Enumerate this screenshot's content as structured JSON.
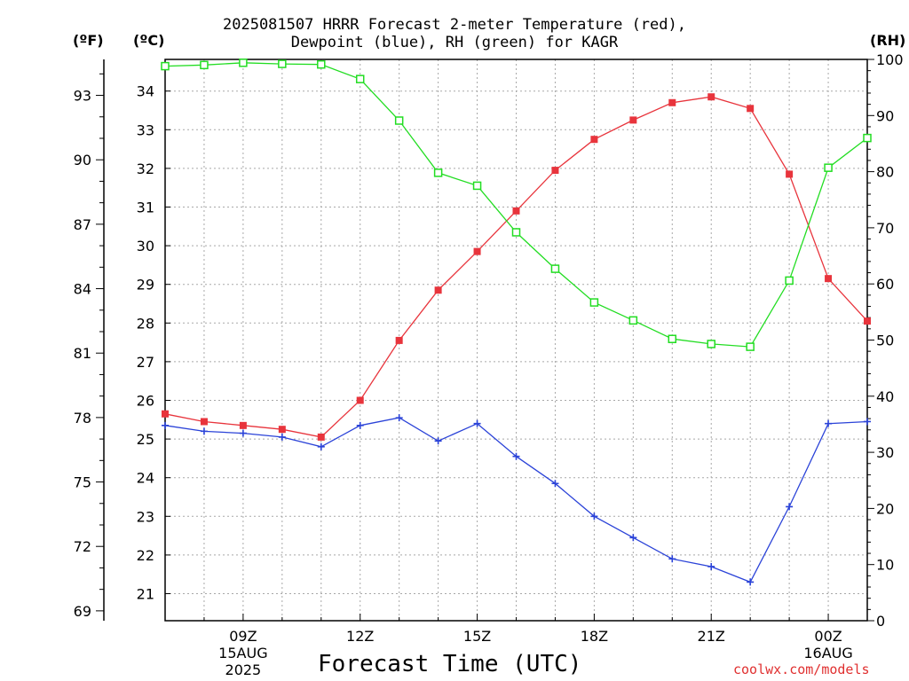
{
  "chart_data": {
    "type": "line",
    "title_line1": "2025081507 HRRR Forecast 2-meter Temperature (red),",
    "title_line2": "Dewpoint (blue), RH (green) for KAGR",
    "xlabel": "Forecast Time (UTC)",
    "credit": "coolwx.com/models",
    "unit_f": "(ºF)",
    "unit_c": "(ºC)",
    "unit_rh": "(RH)",
    "x_hours": [
      7,
      8,
      9,
      10,
      11,
      12,
      13,
      14,
      15,
      16,
      17,
      18,
      19,
      20,
      21,
      22,
      23,
      24,
      25
    ],
    "x_ticks": [
      {
        "hour": 9,
        "lines": [
          "09Z",
          "15AUG",
          "2025"
        ]
      },
      {
        "hour": 12,
        "lines": [
          "12Z"
        ]
      },
      {
        "hour": 15,
        "lines": [
          "15Z"
        ]
      },
      {
        "hour": 18,
        "lines": [
          "18Z"
        ]
      },
      {
        "hour": 21,
        "lines": [
          "21Z"
        ]
      },
      {
        "hour": 24,
        "lines": [
          "00Z",
          "16AUG"
        ]
      }
    ],
    "x_range": [
      7,
      25
    ],
    "celsius_ticks": [
      21,
      22,
      23,
      24,
      25,
      26,
      27,
      28,
      29,
      30,
      31,
      32,
      33,
      34
    ],
    "fahrenheit_ticks": [
      69,
      72,
      75,
      78,
      81,
      84,
      87,
      90,
      93
    ],
    "rh_ticks": [
      0,
      10,
      20,
      30,
      40,
      50,
      60,
      70,
      80,
      90,
      100
    ],
    "rh_range": [
      0,
      100
    ],
    "grid": true,
    "series": [
      {
        "key": "temp",
        "color": "#e8343c",
        "marker": "filled-square",
        "values": [
          25.65,
          25.45,
          25.35,
          25.25,
          25.05,
          26.0,
          27.55,
          28.85,
          29.85,
          30.9,
          31.95,
          32.75,
          33.25,
          33.7,
          33.85,
          33.55,
          31.85,
          29.15,
          28.05
        ]
      },
      {
        "key": "dewpoint",
        "color": "#2b43d8",
        "marker": "plus",
        "values": [
          25.35,
          25.2,
          25.15,
          25.05,
          24.8,
          25.35,
          25.55,
          24.95,
          25.4,
          24.55,
          23.85,
          23.0,
          22.45,
          21.9,
          21.7,
          21.3,
          23.25,
          25.4,
          25.45
        ]
      },
      {
        "key": "rh",
        "color": "#22dd22",
        "marker": "open-square",
        "values": [
          98.8,
          99.0,
          99.4,
          99.2,
          99.1,
          96.5,
          89.1,
          79.8,
          77.5,
          69.2,
          62.7,
          56.7,
          53.5,
          50.2,
          49.3,
          48.8,
          60.6,
          80.7,
          86.0
        ]
      }
    ]
  }
}
